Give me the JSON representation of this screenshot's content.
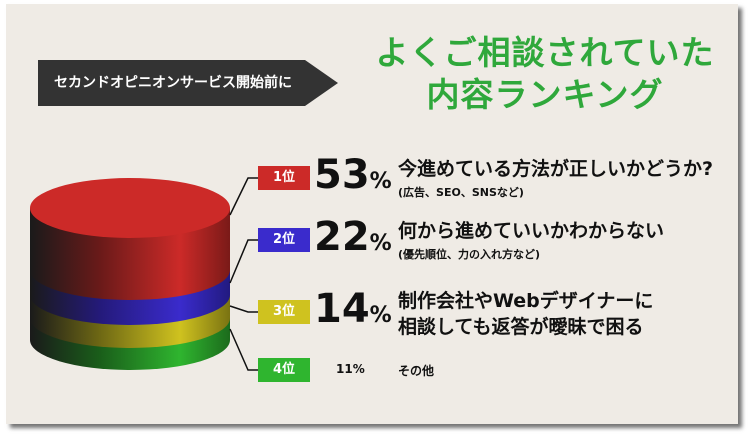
{
  "tag": {
    "text": "セカンドオピニオンサービス開始前に"
  },
  "headline": {
    "line1": "よくご相談されていた",
    "line2": "内容ランキング"
  },
  "chart_data": {
    "type": "pie",
    "ranks": [
      {
        "badge": "1位",
        "percent": 53,
        "label": "今進めている方法が正しいかどうか?",
        "sub": "(広告、SEO、SNSなど)",
        "color": "#cc2a28"
      },
      {
        "badge": "2位",
        "percent": 22,
        "label": "何から進めていいかわからない",
        "sub": "(優先順位、力の入れ方など)",
        "color": "#3a2bcc"
      },
      {
        "badge": "3位",
        "percent": 14,
        "label": "制作会社やWebデザイナーに",
        "label2": "相談しても返答が曖昧で困る",
        "sub": "",
        "color": "#cfc21f"
      },
      {
        "badge": "4位",
        "percent": 11,
        "label": "その他",
        "sub": "",
        "color": "#2fb52f"
      }
    ],
    "percent_sign": "%"
  }
}
